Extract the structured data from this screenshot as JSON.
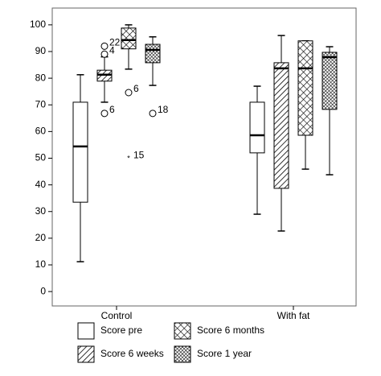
{
  "chart_data": {
    "type": "boxplot",
    "categories": [
      "Control",
      "With fat"
    ],
    "ylim": [
      -5.4,
      106.3
    ],
    "yticks": [
      0,
      10,
      20,
      30,
      40,
      50,
      60,
      70,
      80,
      90,
      100
    ],
    "series": [
      {
        "name": "Score pre",
        "pattern": "none",
        "boxes": [
          {
            "min": 11.2,
            "q1": 33.5,
            "median": 54.4,
            "q3": 71,
            "max": 81.3
          },
          {
            "min": 29,
            "q1": 52,
            "median": 58.6,
            "q3": 71,
            "max": 77
          }
        ],
        "outliers": []
      },
      {
        "name": "Score 6 weeks",
        "pattern": "diagonal",
        "boxes": [
          {
            "min": 71,
            "q1": 78.9,
            "median": 81.3,
            "q3": 83,
            "max": 88
          },
          {
            "min": 22.7,
            "q1": 38.7,
            "median": 83.7,
            "q3": 85.8,
            "max": 96
          }
        ],
        "outliers": [
          {
            "category": "Control",
            "value": 92,
            "label": "22",
            "marker": "circle"
          },
          {
            "category": "Control",
            "value": 89,
            "label": "4",
            "marker": "circle"
          },
          {
            "category": "Control",
            "value": 66.8,
            "label": "6",
            "marker": "circle"
          }
        ]
      },
      {
        "name": "Score 6 months",
        "pattern": "cross",
        "boxes": [
          {
            "min": 83.4,
            "q1": 91,
            "median": 94.3,
            "q3": 98.8,
            "max": 100
          },
          {
            "min": 45.9,
            "q1": 58.6,
            "median": 83.7,
            "q3": 94,
            "max": 94
          }
        ],
        "outliers": [
          {
            "category": "Control",
            "value": 74.6,
            "label": "6",
            "marker": "circle"
          },
          {
            "category": "Control",
            "value": 49.8,
            "label": "15",
            "marker": "star"
          }
        ]
      },
      {
        "name": "Score 1 year",
        "pattern": "dense-cross",
        "boxes": [
          {
            "min": 77.3,
            "q1": 85.8,
            "median": 90.6,
            "q3": 92.7,
            "max": 95.5
          },
          {
            "min": 43.8,
            "q1": 68.3,
            "median": 87.9,
            "q3": 89.7,
            "max": 91.8
          }
        ],
        "outliers": [
          {
            "category": "Control",
            "value": 66.8,
            "label": "18",
            "marker": "circle"
          }
        ]
      }
    ]
  }
}
